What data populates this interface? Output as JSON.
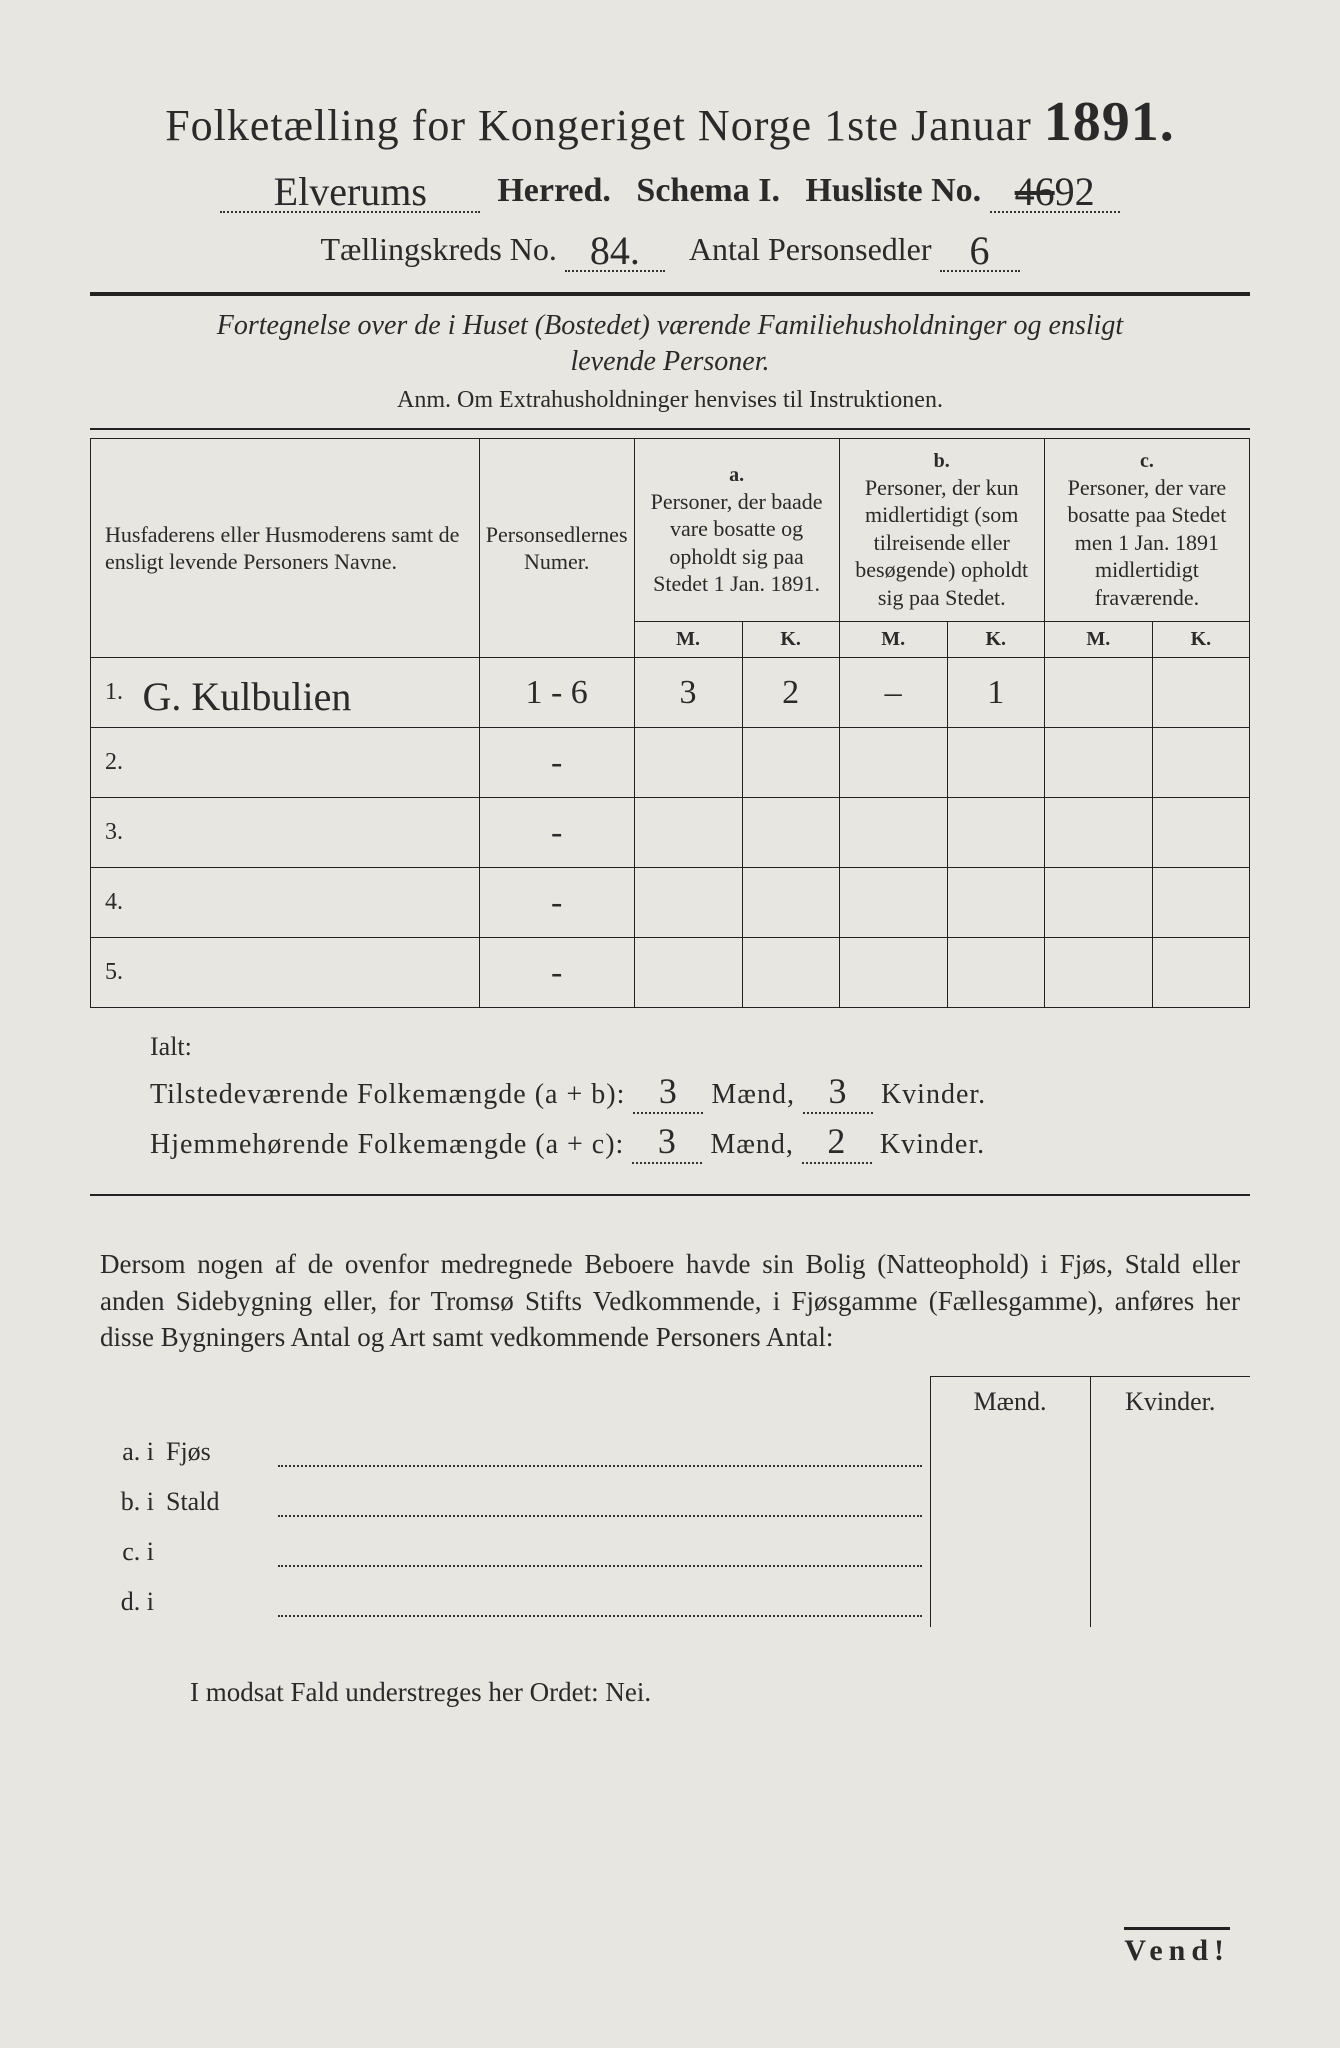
{
  "header": {
    "title_prefix": "Folketælling for Kongeriget Norge 1ste Januar",
    "year": "1891.",
    "herred_value": "Elverums",
    "herred_label": "Herred.",
    "schema_label": "Schema I.",
    "husliste_label": "Husliste No.",
    "husliste_value_struck": "46",
    "husliste_value": "92",
    "kreds_label": "Tællingskreds No.",
    "kreds_value": "84.",
    "antal_label": "Antal Personsedler",
    "antal_value": "6"
  },
  "subtitle": {
    "line1": "Fortegnelse over de i Huset (Bostedet) værende Familiehusholdninger og ensligt",
    "line2": "levende Personer.",
    "anm": "Anm. Om Extrahusholdninger henvises til Instruktionen."
  },
  "table": {
    "col_name": "Husfaderens eller Husmoderens samt de ensligt levende Personers Navne.",
    "col_numer": "Personsedlernes Numer.",
    "col_a_label": "a.",
    "col_a": "Personer, der baade vare bosatte og opholdt sig paa Stedet 1 Jan. 1891.",
    "col_b_label": "b.",
    "col_b": "Personer, der kun midlertidigt (som tilreisende eller besøgende) opholdt sig paa Stedet.",
    "col_c_label": "c.",
    "col_c": "Personer, der vare bosatte paa Stedet men 1 Jan. 1891 midlertidigt fraværende.",
    "m": "M.",
    "k": "K.",
    "rows": [
      {
        "n": "1.",
        "name": "G. Kulbulien",
        "numer": "1 - 6",
        "aM": "3",
        "aK": "2",
        "bM": "–",
        "bK": "1",
        "cM": "",
        "cK": ""
      },
      {
        "n": "2.",
        "name": "",
        "numer": "-",
        "aM": "",
        "aK": "",
        "bM": "",
        "bK": "",
        "cM": "",
        "cK": ""
      },
      {
        "n": "3.",
        "name": "",
        "numer": "-",
        "aM": "",
        "aK": "",
        "bM": "",
        "bK": "",
        "cM": "",
        "cK": ""
      },
      {
        "n": "4.",
        "name": "",
        "numer": "-",
        "aM": "",
        "aK": "",
        "bM": "",
        "bK": "",
        "cM": "",
        "cK": ""
      },
      {
        "n": "5.",
        "name": "",
        "numer": "-",
        "aM": "",
        "aK": "",
        "bM": "",
        "bK": "",
        "cM": "",
        "cK": ""
      }
    ]
  },
  "totals": {
    "ialt": "Ialt:",
    "line1_label": "Tilstedeværende Folkemængde (a + b):",
    "line1_m": "3",
    "line1_k": "3",
    "line2_label": "Hjemmehørende Folkemængde (a + c):",
    "line2_m": "3",
    "line2_k": "2",
    "maend": "Mænd,",
    "kvinder": "Kvinder."
  },
  "para": "Dersom nogen af de ovenfor medregnede Beboere havde sin Bolig (Natteophold) i Fjøs, Stald eller anden Sidebygning eller, for Tromsø Stifts Vedkommende, i Fjøsgamme (Fællesgamme), anføres her disse Bygningers Antal og Art samt vedkommende Personers Antal:",
  "lower": {
    "maend": "Mænd.",
    "kvinder": "Kvinder.",
    "rows": [
      {
        "lab": "a. i",
        "word": "Fjøs"
      },
      {
        "lab": "b. i",
        "word": "Stald"
      },
      {
        "lab": "c. i",
        "word": ""
      },
      {
        "lab": "d. i",
        "word": ""
      }
    ]
  },
  "modsat": "I modsat Fald understreges her Ordet: Nei.",
  "vend": "Vend!",
  "colors": {
    "page_bg": "#e8e6e0",
    "text": "#2a2a2a",
    "rule": "#222222"
  }
}
